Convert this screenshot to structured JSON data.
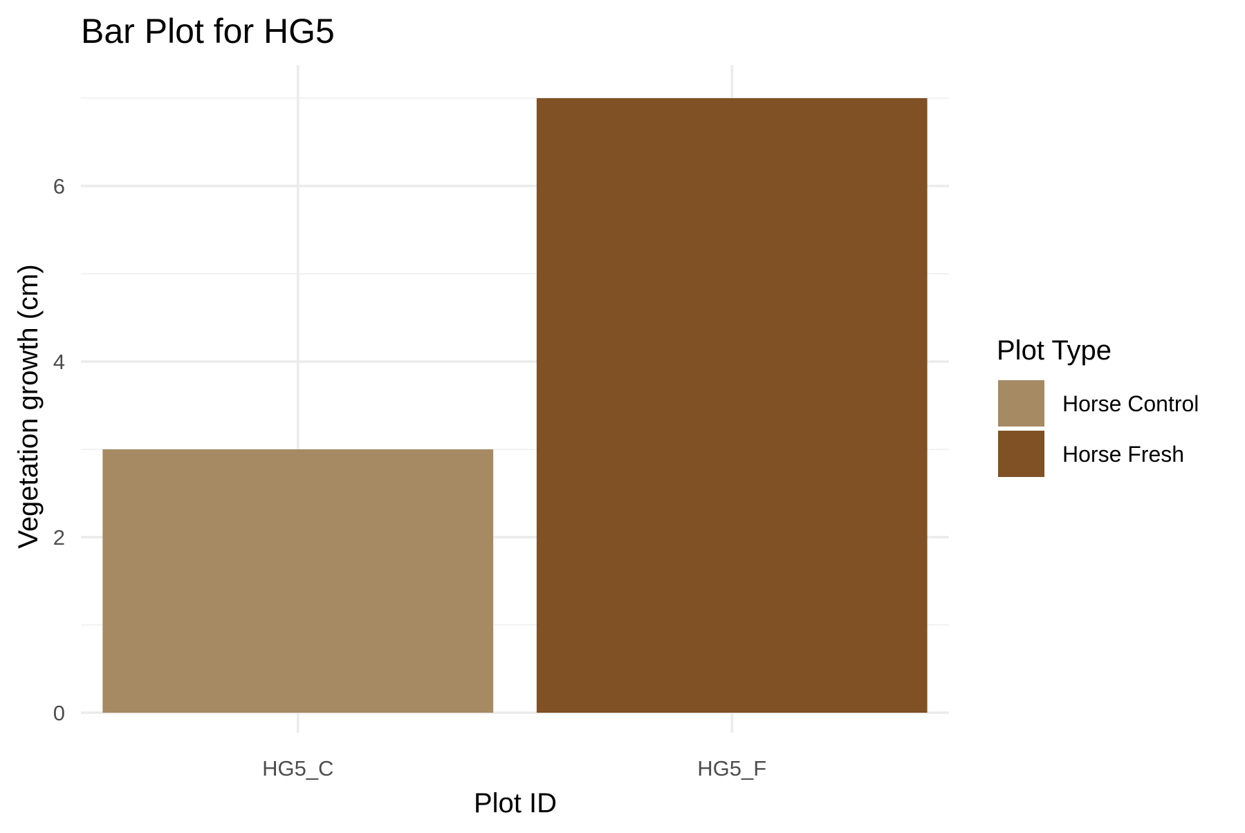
{
  "chart_data": {
    "type": "bar",
    "title": "Bar Plot for HG5",
    "xlabel": "Plot ID",
    "ylabel": "Vegetation growth (cm)",
    "categories": [
      "HG5_C",
      "HG5_F"
    ],
    "values": [
      3,
      7
    ],
    "bar_groups": [
      "Horse Control",
      "Horse Fresh"
    ],
    "ylim": [
      0,
      7.35
    ],
    "yticks": [
      0,
      2,
      4,
      6
    ],
    "grid": true,
    "legend": {
      "title": "Plot Type",
      "placement": "right",
      "entries": [
        {
          "label": "Horse Control",
          "color": "#a68a64"
        },
        {
          "label": "Horse Fresh",
          "color": "#7f5125"
        }
      ]
    },
    "colors": {
      "major_grid": "#ebebeb",
      "minor_grid": "#f2f2f2",
      "tick_text": "#4d4d4d"
    }
  }
}
